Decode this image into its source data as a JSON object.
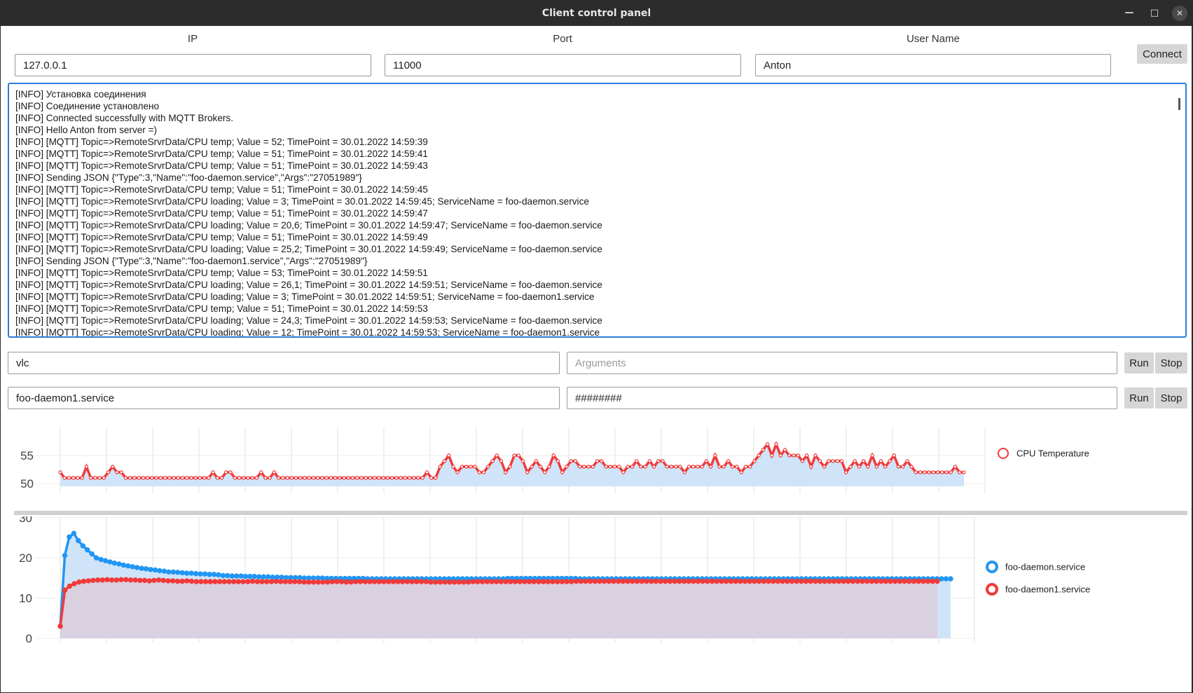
{
  "window": {
    "title": "Client control panel"
  },
  "connection": {
    "ip_label": "IP",
    "ip_value": "127.0.0.1",
    "port_label": "Port",
    "port_value": "11000",
    "user_label": "User Name",
    "user_value": "Anton",
    "connect_label": "Connect"
  },
  "log": [
    "[INFO] Установка соединения",
    "[INFO] Соединение установлено",
    "[INFO] Connected successfully with MQTT Brokers.",
    "[INFO] Hello Anton from server =)",
    "[INFO] [MQTT] Topic=>RemoteSrvrData/CPU temp; Value = 52; TimePoint = 30.01.2022 14:59:39",
    "[INFO] [MQTT] Topic=>RemoteSrvrData/CPU temp; Value = 51; TimePoint = 30.01.2022 14:59:41",
    "[INFO] [MQTT] Topic=>RemoteSrvrData/CPU temp; Value = 51; TimePoint = 30.01.2022 14:59:43",
    "[INFO] Sending JSON {\"Type\":3,\"Name\":\"foo-daemon.service\",\"Args\":\"27051989\"}",
    "[INFO] [MQTT] Topic=>RemoteSrvrData/CPU temp; Value = 51; TimePoint = 30.01.2022 14:59:45",
    "[INFO] [MQTT] Topic=>RemoteSrvrData/CPU loading; Value = 3; TimePoint = 30.01.2022 14:59:45; ServiceName = foo-daemon.service",
    "[INFO] [MQTT] Topic=>RemoteSrvrData/CPU temp; Value = 51; TimePoint = 30.01.2022 14:59:47",
    "[INFO] [MQTT] Topic=>RemoteSrvrData/CPU loading; Value = 20,6; TimePoint = 30.01.2022 14:59:47; ServiceName = foo-daemon.service",
    "[INFO] [MQTT] Topic=>RemoteSrvrData/CPU temp; Value = 51; TimePoint = 30.01.2022 14:59:49",
    "[INFO] [MQTT] Topic=>RemoteSrvrData/CPU loading; Value = 25,2; TimePoint = 30.01.2022 14:59:49; ServiceName = foo-daemon.service",
    "[INFO] Sending JSON {\"Type\":3,\"Name\":\"foo-daemon1.service\",\"Args\":\"27051989\"}",
    "[INFO] [MQTT] Topic=>RemoteSrvrData/CPU temp; Value = 53; TimePoint = 30.01.2022 14:59:51",
    "[INFO] [MQTT] Topic=>RemoteSrvrData/CPU loading; Value = 26,1; TimePoint = 30.01.2022 14:59:51; ServiceName = foo-daemon.service",
    "[INFO] [MQTT] Topic=>RemoteSrvrData/CPU loading; Value = 3; TimePoint = 30.01.2022 14:59:51; ServiceName = foo-daemon1.service",
    "[INFO] [MQTT] Topic=>RemoteSrvrData/CPU temp; Value = 51; TimePoint = 30.01.2022 14:59:53",
    "[INFO] [MQTT] Topic=>RemoteSrvrData/CPU loading; Value = 24,3; TimePoint = 30.01.2022 14:59:53; ServiceName = foo-daemon.service",
    "[INFO] [MQTT] Topic=>RemoteSrvrData/CPU loading; Value = 12; TimePoint = 30.01.2022 14:59:53; ServiceName = foo-daemon1.service"
  ],
  "process_rows": [
    {
      "name": "vlc",
      "args_value": "",
      "args_placeholder": "Arguments",
      "run_label": "Run",
      "stop_label": "Stop"
    },
    {
      "name": "foo-daemon1.service",
      "args_value": "########",
      "args_placeholder": "Arguments",
      "run_label": "Run",
      "stop_label": "Stop"
    }
  ],
  "colors": {
    "blue": "#2196f3",
    "red": "#f03a3a",
    "blue_fill": "#cfe4f8",
    "mix_fill": "#dccad8",
    "accent": "#2a7fd4"
  },
  "chart_data": [
    {
      "type": "area",
      "series": [
        {
          "name": "CPU Temperature",
          "color": "#f03a3a",
          "values": [
            52,
            51,
            51,
            51,
            51,
            51,
            53,
            51,
            51,
            51,
            51,
            52,
            53,
            52,
            52,
            51,
            51,
            51,
            51,
            51,
            51,
            51,
            51,
            51,
            51,
            51,
            51,
            51,
            51,
            51,
            51,
            51,
            51,
            51,
            51,
            52,
            51,
            51,
            52,
            52,
            51,
            51,
            51,
            51,
            51,
            51,
            52,
            51,
            51,
            52,
            51,
            51,
            51,
            51,
            51,
            51,
            51,
            51,
            51,
            51,
            51,
            51,
            51,
            51,
            51,
            51,
            51,
            51,
            51,
            51,
            51,
            51,
            51,
            51,
            51,
            51,
            51,
            51,
            51,
            51,
            51,
            51,
            51,
            51,
            52,
            51,
            51,
            53,
            54,
            55,
            53,
            52,
            53,
            53,
            53,
            53,
            52,
            52,
            53,
            54,
            55,
            54,
            52,
            53,
            55,
            55,
            54,
            52,
            53,
            54,
            53,
            52,
            53,
            55,
            54,
            52,
            53,
            54,
            54,
            53,
            53,
            53,
            53,
            54,
            54,
            53,
            53,
            53,
            53,
            52,
            53,
            53,
            54,
            53,
            53,
            54,
            53,
            54,
            54,
            53,
            53,
            53,
            53,
            52,
            53,
            53,
            53,
            53,
            54,
            53,
            55,
            53,
            53,
            54,
            53,
            53,
            52,
            53,
            53,
            54,
            55,
            56,
            57,
            55,
            57,
            55,
            56,
            55,
            55,
            55,
            54,
            55,
            53,
            55,
            54,
            53,
            54,
            54,
            54,
            54,
            52,
            53,
            54,
            53,
            54,
            53,
            55,
            53,
            54,
            53,
            54,
            55,
            53,
            53,
            54,
            53,
            52,
            52,
            52,
            52,
            52,
            52,
            52,
            52,
            52,
            53,
            52,
            52
          ]
        }
      ],
      "ylim": [
        49,
        59
      ],
      "yticks": [
        50,
        55
      ],
      "legend": "right"
    },
    {
      "type": "area",
      "series": [
        {
          "name": "foo-daemon.service",
          "color": "#2196f3",
          "values": [
            3,
            20.6,
            25.2,
            26.1,
            24.3,
            23,
            22,
            21,
            20,
            19.6,
            19.3,
            19,
            18.7,
            18.5,
            18.2,
            18,
            17.8,
            17.6,
            17.4,
            17.3,
            17.1,
            17,
            16.8,
            16.7,
            16.5,
            16.5,
            16.4,
            16.3,
            16.2,
            16.2,
            16.1,
            16,
            16,
            15.9,
            15.9,
            15.8,
            15.6,
            15.6,
            15.5,
            15.5,
            15.5,
            15.4,
            15.4,
            15.4,
            15.3,
            15.3,
            15.3,
            15.2,
            15.2,
            15.2,
            15.1,
            15.1,
            15.1,
            15.1,
            15,
            15,
            15,
            15,
            15,
            14.9,
            14.9,
            14.9,
            14.9,
            14.9,
            14.9,
            14.9,
            14.9,
            14.9,
            14.8,
            14.8,
            14.8,
            14.8,
            14.8,
            14.8,
            14.8,
            14.8,
            14.8,
            14.8,
            14.8,
            14.8,
            14.8,
            14.8,
            14.8,
            14.8,
            14.8,
            14.8,
            14.8,
            14.8,
            14.8,
            14.8,
            14.8,
            14.8,
            14.8,
            14.8,
            14.8,
            14.8,
            14.8,
            14.8,
            14.8,
            14.9,
            14.9,
            14.9,
            14.9,
            14.9,
            14.9,
            14.9,
            14.9,
            14.9,
            14.9,
            14.9,
            14.9,
            14.9,
            14.9,
            14.9,
            14.9,
            14.8,
            14.8,
            14.8,
            14.8,
            14.8,
            14.8,
            14.8,
            14.8,
            14.8,
            14.8,
            14.8,
            14.8,
            14.8,
            14.8,
            14.8,
            14.8,
            14.8,
            14.8,
            14.8,
            14.8,
            14.8,
            14.8,
            14.8,
            14.8,
            14.8,
            14.8,
            14.8,
            14.8,
            14.8,
            14.8,
            14.8,
            14.8,
            14.8,
            14.8,
            14.8,
            14.8,
            14.8,
            14.8,
            14.8,
            14.8,
            14.8,
            14.8,
            14.8,
            14.8,
            14.8,
            14.8,
            14.8,
            14.8,
            14.8,
            14.8,
            14.8,
            14.8,
            14.8,
            14.8,
            14.8,
            14.8,
            14.8,
            14.8,
            14.8,
            14.8,
            14.8,
            14.8,
            14.8,
            14.8,
            14.8,
            14.8,
            14.8,
            14.8,
            14.8,
            14.8,
            14.8,
            14.8,
            14.8,
            14.8,
            14.8,
            14.8,
            14.8,
            14.8,
            14.8,
            14.8,
            14.8,
            14.8,
            14.8
          ]
        },
        {
          "name": "foo-daemon1.service",
          "color": "#f03a3a",
          "values": [
            3,
            12,
            13,
            13.6,
            14,
            14.2,
            14.3,
            14.4,
            14.5,
            14.5,
            14.6,
            14.5,
            14.5,
            14.6,
            14.6,
            14.5,
            14.5,
            14.4,
            14.4,
            14.3,
            14.4,
            14.5,
            14.4,
            14.3,
            14.3,
            14.2,
            14.2,
            14.3,
            14.2,
            14.1,
            14.1,
            14.1,
            14.1,
            14.1,
            14.1,
            14.1,
            14.1,
            14.1,
            14.1,
            14.1,
            14.1,
            14.2,
            14.1,
            14.1,
            14.1,
            14.1,
            14.2,
            14.1,
            14.1,
            14.1,
            14.1,
            14.1,
            14,
            14,
            14,
            14,
            14,
            14,
            14.1,
            14.1,
            14.1,
            14,
            14,
            14.1,
            14.1,
            14.1,
            14.1,
            14.1,
            14.1,
            14.1,
            14.1,
            14.1,
            14.1,
            14.1,
            14.1,
            14.1,
            14.1,
            14.1,
            14.1,
            14,
            14,
            14,
            14,
            14,
            14,
            14,
            14,
            14,
            14.1,
            14.1,
            14.1,
            14.1,
            14.1,
            14.1,
            14.1,
            14.1,
            14.1,
            14.1,
            14.1,
            14.1,
            14.1,
            14.1,
            14.1,
            14.1,
            14.1,
            14.1,
            14.1,
            14.1,
            14.1,
            14.1,
            14.2,
            14.2,
            14.2,
            14.2,
            14.2,
            14.2,
            14.2,
            14.2,
            14.2,
            14.2,
            14.2,
            14.2,
            14.2,
            14.2,
            14.2,
            14.2,
            14.2,
            14.2,
            14.2,
            14.2,
            14.2,
            14.2,
            14.2,
            14.2,
            14.2,
            14.2,
            14.2,
            14.2,
            14.2,
            14.2,
            14.2,
            14.2,
            14.2,
            14.2,
            14.2,
            14.2,
            14.2,
            14.2,
            14.2,
            14.2,
            14.2,
            14.2,
            14.2,
            14.2,
            14.2,
            14.2,
            14.2,
            14.2,
            14.2,
            14.2,
            14.2,
            14.2,
            14.2,
            14.2,
            14.2,
            14.2,
            14.2,
            14.2,
            14.2,
            14.2,
            14.2,
            14.2,
            14.2,
            14.2,
            14.2,
            14.2,
            14.2,
            14.2,
            14.2,
            14.2,
            14.2,
            14.2,
            14.2,
            14.2,
            14.2,
            14.2,
            14.2,
            14.2
          ]
        }
      ],
      "ylim": [
        0,
        31
      ],
      "yticks": [
        0,
        10,
        20,
        30
      ],
      "legend": "right"
    }
  ]
}
